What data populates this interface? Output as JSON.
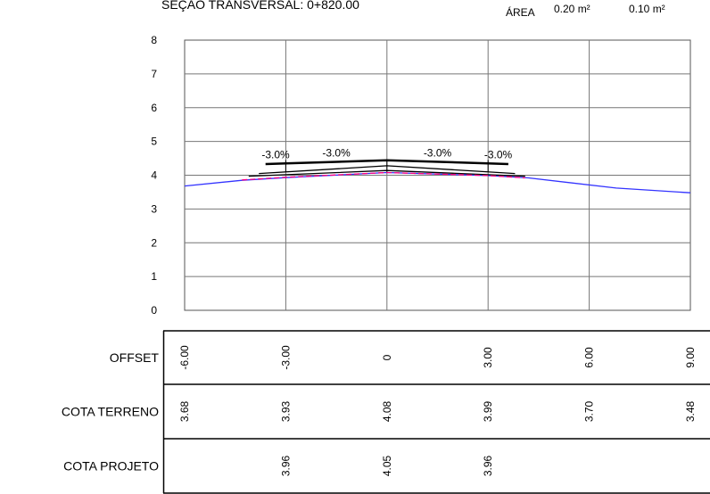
{
  "header": {
    "title": "SEÇÃO TRANSVERSAL: 0+820.00",
    "area_label": "ÁREA",
    "area_values": [
      "0.20 m²",
      "0.10 m²"
    ]
  },
  "chart_data": {
    "type": "line",
    "x_ticks": [
      -6,
      -3,
      0,
      3,
      6,
      9
    ],
    "y_ticks": [
      "0",
      "1",
      "2",
      "3",
      "4",
      "5",
      "6",
      "7",
      "8"
    ],
    "xlim": [
      -6,
      9
    ],
    "ylim": [
      0,
      8
    ],
    "grid": true,
    "series": [
      {
        "key": "terrain",
        "color": "#3333ff",
        "x": [
          -6.0,
          -4.3,
          -3.0,
          0,
          3.0,
          4.2,
          6.8,
          9.0
        ],
        "y": [
          3.68,
          3.85,
          3.93,
          4.08,
          3.99,
          3.92,
          3.62,
          3.48
        ]
      },
      {
        "key": "pavement_top",
        "color": "#000000",
        "x": [
          -3.6,
          -3.0,
          0,
          3.0,
          3.6
        ],
        "y": [
          4.33,
          4.35,
          4.44,
          4.35,
          4.33
        ]
      },
      {
        "key": "pavement_mid",
        "color": "#000000",
        "x": [
          -3.8,
          0,
          3.8
        ],
        "y": [
          4.05,
          4.28,
          4.05
        ]
      },
      {
        "key": "pavement_base",
        "color": "#000000",
        "x": [
          -4.1,
          0,
          4.1
        ],
        "y": [
          3.97,
          4.14,
          3.97
        ]
      },
      {
        "key": "cut_fill_boundary",
        "color": "#ff0080",
        "dashed": true,
        "x": [
          -4.3,
          -3.0,
          0,
          3.0,
          4.1
        ],
        "y": [
          3.86,
          3.94,
          4.08,
          3.99,
          3.92
        ]
      }
    ],
    "slope_labels": [
      {
        "x": -3.3,
        "y": 4.5,
        "text": "-3.0%"
      },
      {
        "x": -1.5,
        "y": 4.55,
        "text": "-3.0%"
      },
      {
        "x": 1.5,
        "y": 4.55,
        "text": "-3.0%"
      },
      {
        "x": 3.3,
        "y": 4.5,
        "text": "-3.0%"
      }
    ]
  },
  "table": {
    "rows": [
      {
        "label": "OFFSET",
        "values": [
          {
            "x": -6,
            "text": "-6.00"
          },
          {
            "x": -3,
            "text": "-3.00"
          },
          {
            "x": 0,
            "text": "0"
          },
          {
            "x": 3,
            "text": "3.00"
          },
          {
            "x": 6,
            "text": "6.00"
          },
          {
            "x": 9,
            "text": "9.00"
          }
        ]
      },
      {
        "label": "COTA TERRENO",
        "values": [
          {
            "x": -6,
            "text": "3.68"
          },
          {
            "x": -3,
            "text": "3.93"
          },
          {
            "x": 0,
            "text": "4.08"
          },
          {
            "x": 3,
            "text": "3.99"
          },
          {
            "x": 6,
            "text": "3.70"
          },
          {
            "x": 9,
            "text": "3.48"
          }
        ]
      },
      {
        "label": "COTA PROJETO",
        "values": [
          {
            "x": -3,
            "text": "3.96"
          },
          {
            "x": 0,
            "text": "4.05"
          },
          {
            "x": 3,
            "text": "3.96"
          }
        ]
      }
    ]
  }
}
